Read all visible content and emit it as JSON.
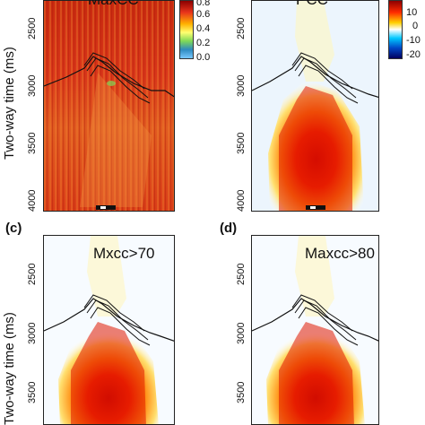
{
  "axis": {
    "ylabel": "Two-way time (ms)",
    "ticks": [
      "2500",
      "3000",
      "3500",
      "4000"
    ]
  },
  "panels": {
    "a": {
      "title": "MaxCC"
    },
    "b": {
      "title": "PCC"
    },
    "c": {
      "label": "(c)",
      "title": "Mxcc>70"
    },
    "d": {
      "label": "(d)",
      "title": "Maxcc>80"
    }
  },
  "colorbar_a": {
    "ticks": [
      "0.8",
      "0.6",
      "0.4",
      "0.2",
      "0.0"
    ],
    "colors": [
      "#8b0000",
      "#e8341c",
      "#ffb000",
      "#ffff70",
      "#7fd957",
      "#2e8bc0",
      "#78c8ff"
    ]
  },
  "colorbar_b": {
    "ticks": [
      "10",
      "0",
      "-10",
      "-20"
    ],
    "colors": [
      "#8b0000",
      "#ff2a00",
      "#ffd000",
      "#ffffff",
      "#00c8ff",
      "#0048c8",
      "#000060"
    ]
  }
}
